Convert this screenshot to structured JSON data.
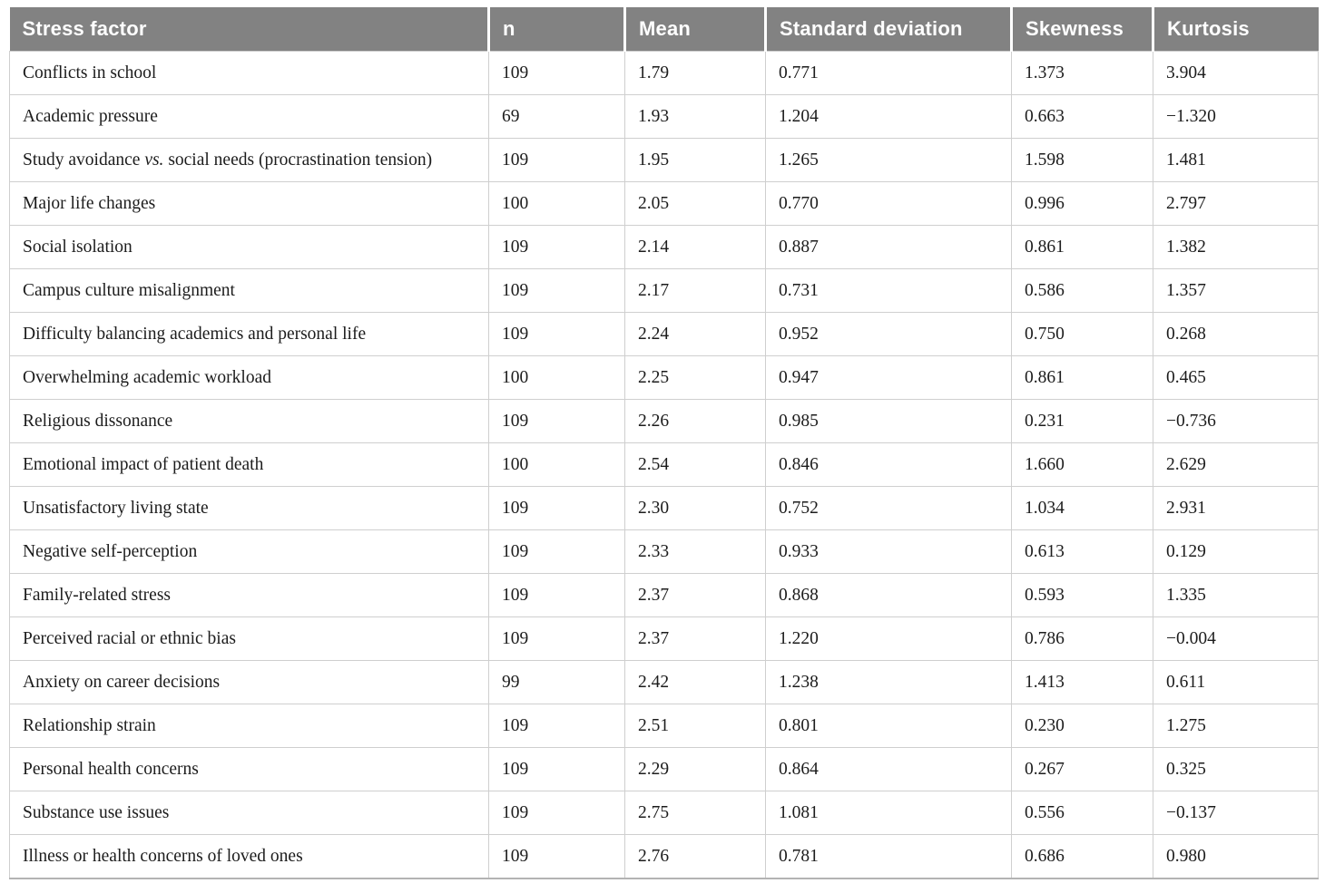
{
  "table": {
    "columns": [
      "Stress factor",
      "n",
      "Mean",
      "Standard deviation",
      "Skewness",
      "Kurtosis"
    ],
    "rows": [
      {
        "factor": "Conflicts in school",
        "n": "109",
        "mean": "1.79",
        "sd": "0.771",
        "skewness": "1.373",
        "kurtosis": "3.904"
      },
      {
        "factor": "Academic pressure",
        "n": "69",
        "mean": "1.93",
        "sd": "1.204",
        "skewness": "0.663",
        "kurtosis": "−1.320"
      },
      {
        "factor": "Study avoidance vs. social needs (procrastination tension)",
        "n": "109",
        "mean": "1.95",
        "sd": "1.265",
        "skewness": "1.598",
        "kurtosis": "1.481"
      },
      {
        "factor": "Major life changes",
        "n": "100",
        "mean": "2.05",
        "sd": "0.770",
        "skewness": "0.996",
        "kurtosis": "2.797"
      },
      {
        "factor": "Social isolation",
        "n": "109",
        "mean": "2.14",
        "sd": "0.887",
        "skewness": "0.861",
        "kurtosis": "1.382"
      },
      {
        "factor": "Campus culture misalignment",
        "n": "109",
        "mean": "2.17",
        "sd": "0.731",
        "skewness": "0.586",
        "kurtosis": "1.357"
      },
      {
        "factor": "Difficulty balancing academics and personal life",
        "n": "109",
        "mean": "2.24",
        "sd": "0.952",
        "skewness": "0.750",
        "kurtosis": "0.268"
      },
      {
        "factor": "Overwhelming academic workload",
        "n": "100",
        "mean": "2.25",
        "sd": "0.947",
        "skewness": "0.861",
        "kurtosis": "0.465"
      },
      {
        "factor": "Religious dissonance",
        "n": "109",
        "mean": "2.26",
        "sd": "0.985",
        "skewness": "0.231",
        "kurtosis": "−0.736"
      },
      {
        "factor": "Emotional impact of patient death",
        "n": "100",
        "mean": "2.54",
        "sd": "0.846",
        "skewness": "1.660",
        "kurtosis": "2.629"
      },
      {
        "factor": "Unsatisfactory living state",
        "n": "109",
        "mean": "2.30",
        "sd": "0.752",
        "skewness": "1.034",
        "kurtosis": "2.931"
      },
      {
        "factor": "Negative self-perception",
        "n": "109",
        "mean": "2.33",
        "sd": "0.933",
        "skewness": "0.613",
        "kurtosis": "0.129"
      },
      {
        "factor": "Family-related stress",
        "n": "109",
        "mean": "2.37",
        "sd": "0.868",
        "skewness": "0.593",
        "kurtosis": "1.335"
      },
      {
        "factor": "Perceived racial or ethnic bias",
        "n": "109",
        "mean": "2.37",
        "sd": "1.220",
        "skewness": "0.786",
        "kurtosis": "−0.004"
      },
      {
        "factor": "Anxiety on career decisions",
        "n": "99",
        "mean": "2.42",
        "sd": "1.238",
        "skewness": "1.413",
        "kurtosis": "0.611"
      },
      {
        "factor": "Relationship strain",
        "n": "109",
        "mean": "2.51",
        "sd": "0.801",
        "skewness": "0.230",
        "kurtosis": "1.275"
      },
      {
        "factor": "Personal health concerns",
        "n": "109",
        "mean": "2.29",
        "sd": "0.864",
        "skewness": "0.267",
        "kurtosis": "0.325"
      },
      {
        "factor": "Substance use issues",
        "n": "109",
        "mean": "2.75",
        "sd": "1.081",
        "skewness": "0.556",
        "kurtosis": "−0.137"
      },
      {
        "factor": "Illness or health concerns of loved ones",
        "n": "109",
        "mean": "2.76",
        "sd": "0.781",
        "skewness": "0.686",
        "kurtosis": "0.980"
      }
    ],
    "italic_token": "vs."
  },
  "colors": {
    "header_bg": "#828282",
    "header_text": "#ffffff",
    "body_text": "#1c1c1c",
    "grid_line": "#cfcfcf",
    "bottom_rule": "#b3b3b3"
  }
}
